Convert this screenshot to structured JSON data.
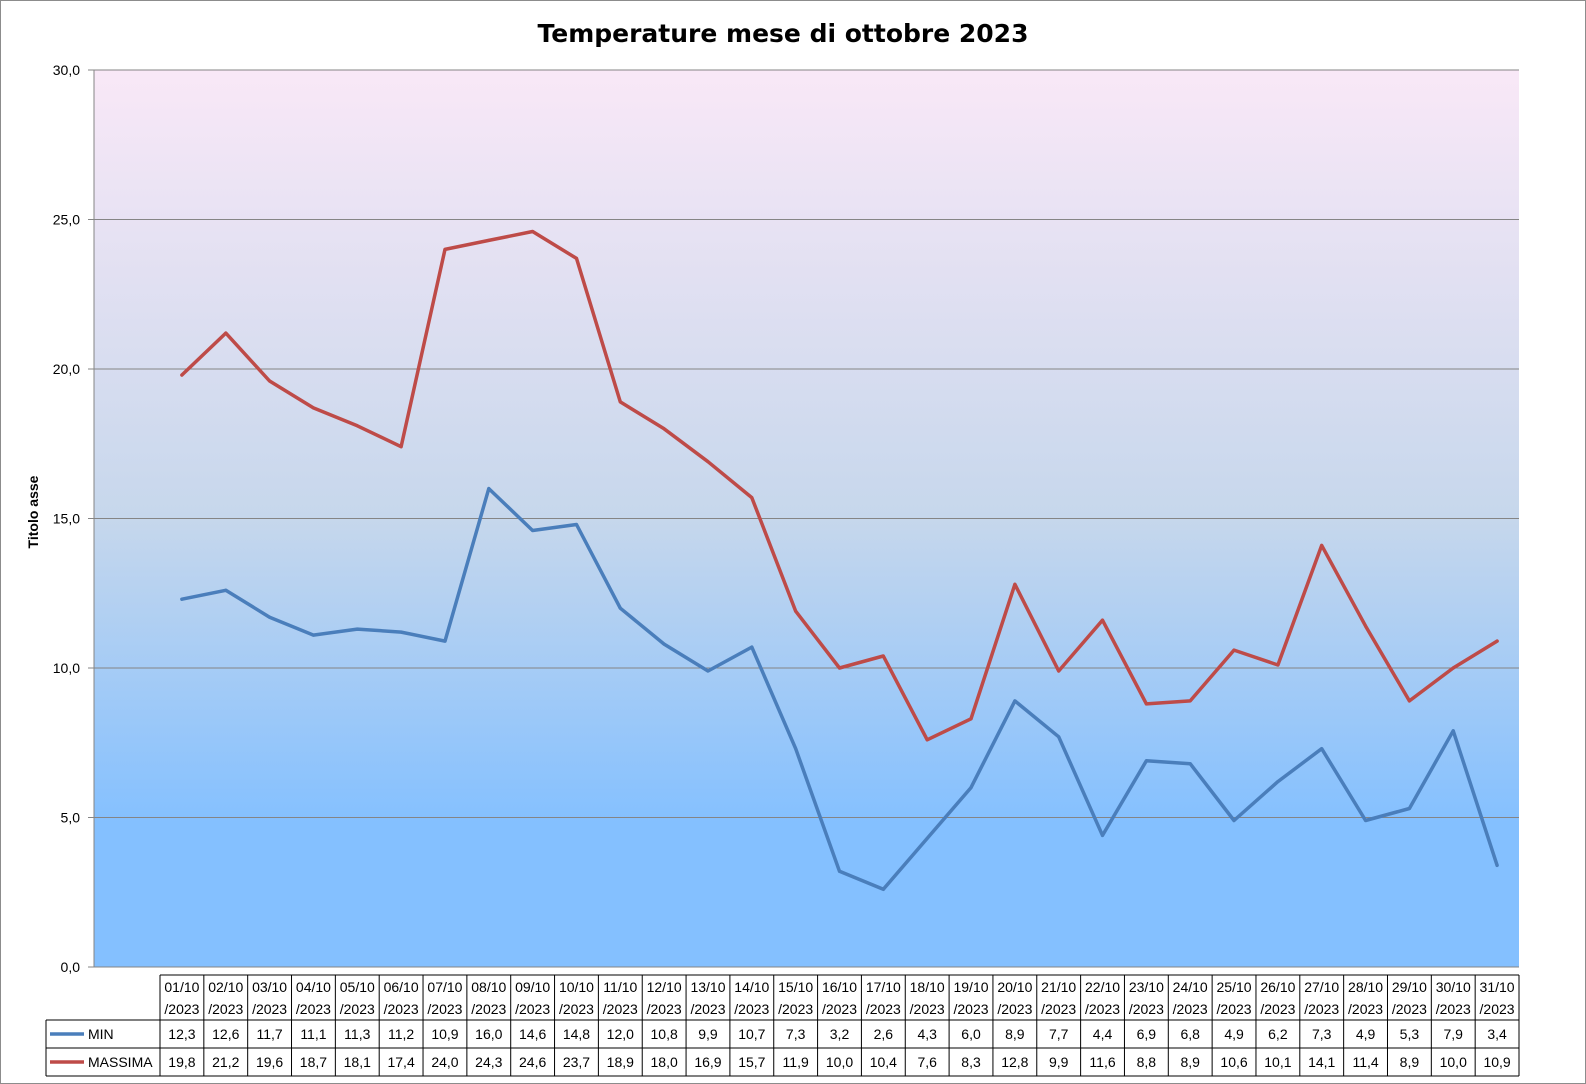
{
  "chart_data": {
    "type": "line",
    "title": "Temperature mese di ottobre 2023",
    "xlabel": "",
    "ylabel": "Titolo asse",
    "ylim": [
      0,
      30
    ],
    "yticks": [
      "0,0",
      "5,0",
      "10,0",
      "15,0",
      "20,0",
      "25,0",
      "30,0"
    ],
    "grid": true,
    "legend": "data-table",
    "categories": [
      [
        "01/10",
        "/2023"
      ],
      [
        "02/10",
        "/2023"
      ],
      [
        "03/10",
        "/2023"
      ],
      [
        "04/10",
        "/2023"
      ],
      [
        "05/10",
        "/2023"
      ],
      [
        "06/10",
        "/2023"
      ],
      [
        "07/10",
        "/2023"
      ],
      [
        "08/10",
        "/2023"
      ],
      [
        "09/10",
        "/2023"
      ],
      [
        "10/10",
        "/2023"
      ],
      [
        "11/10",
        "/2023"
      ],
      [
        "12/10",
        "/2023"
      ],
      [
        "13/10",
        "/2023"
      ],
      [
        "14/10",
        "/2023"
      ],
      [
        "15/10",
        "/2023"
      ],
      [
        "16/10",
        "/2023"
      ],
      [
        "17/10",
        "/2023"
      ],
      [
        "18/10",
        "/2023"
      ],
      [
        "19/10",
        "/2023"
      ],
      [
        "20/10",
        "/2023"
      ],
      [
        "21/10",
        "/2023"
      ],
      [
        "22/10",
        "/2023"
      ],
      [
        "23/10",
        "/2023"
      ],
      [
        "24/10",
        "/2023"
      ],
      [
        "25/10",
        "/2023"
      ],
      [
        "26/10",
        "/2023"
      ],
      [
        "27/10",
        "/2023"
      ],
      [
        "28/10",
        "/2023"
      ],
      [
        "29/10",
        "/2023"
      ],
      [
        "30/10",
        "/2023"
      ],
      [
        "31/10",
        "/2023"
      ]
    ],
    "series": [
      {
        "name": "MIN",
        "color": "#4a7ebb",
        "values": [
          12.3,
          12.6,
          11.7,
          11.1,
          11.3,
          11.2,
          10.9,
          16.0,
          14.6,
          14.8,
          12.0,
          10.8,
          9.9,
          10.7,
          7.3,
          3.2,
          2.6,
          4.3,
          6.0,
          8.9,
          7.7,
          4.4,
          6.9,
          6.8,
          4.9,
          6.2,
          7.3,
          4.9,
          5.3,
          7.9,
          3.4
        ],
        "labels": [
          "12,3",
          "12,6",
          "11,7",
          "11,1",
          "11,3",
          "11,2",
          "10,9",
          "16,0",
          "14,6",
          "14,8",
          "12,0",
          "10,8",
          "9,9",
          "10,7",
          "7,3",
          "3,2",
          "2,6",
          "4,3",
          "6,0",
          "8,9",
          "7,7",
          "4,4",
          "6,9",
          "6,8",
          "4,9",
          "6,2",
          "7,3",
          "4,9",
          "5,3",
          "7,9",
          "3,4"
        ]
      },
      {
        "name": "MASSIMA",
        "color": "#be4b48",
        "values": [
          19.8,
          21.2,
          19.6,
          18.7,
          18.1,
          17.4,
          24.0,
          24.3,
          24.6,
          23.7,
          18.9,
          18.0,
          16.9,
          15.7,
          11.9,
          10.0,
          10.4,
          7.6,
          8.3,
          12.8,
          9.9,
          11.6,
          8.8,
          8.9,
          10.6,
          10.1,
          14.1,
          11.4,
          8.9,
          10.0,
          10.9
        ],
        "labels": [
          "19,8",
          "21,2",
          "19,6",
          "18,7",
          "18,1",
          "17,4",
          "24,0",
          "24,3",
          "24,6",
          "23,7",
          "18,9",
          "18,0",
          "16,9",
          "15,7",
          "11,9",
          "10,0",
          "10,4",
          "7,6",
          "8,3",
          "12,8",
          "9,9",
          "11,6",
          "8,8",
          "8,9",
          "10,6",
          "10,1",
          "14,1",
          "11,4",
          "8,9",
          "10,0",
          "10,9"
        ]
      }
    ],
    "plot_background": {
      "top_color": "#f9e8f7",
      "mid_color": "#c6d7ec",
      "bottom_color": "#84c0ff"
    }
  }
}
